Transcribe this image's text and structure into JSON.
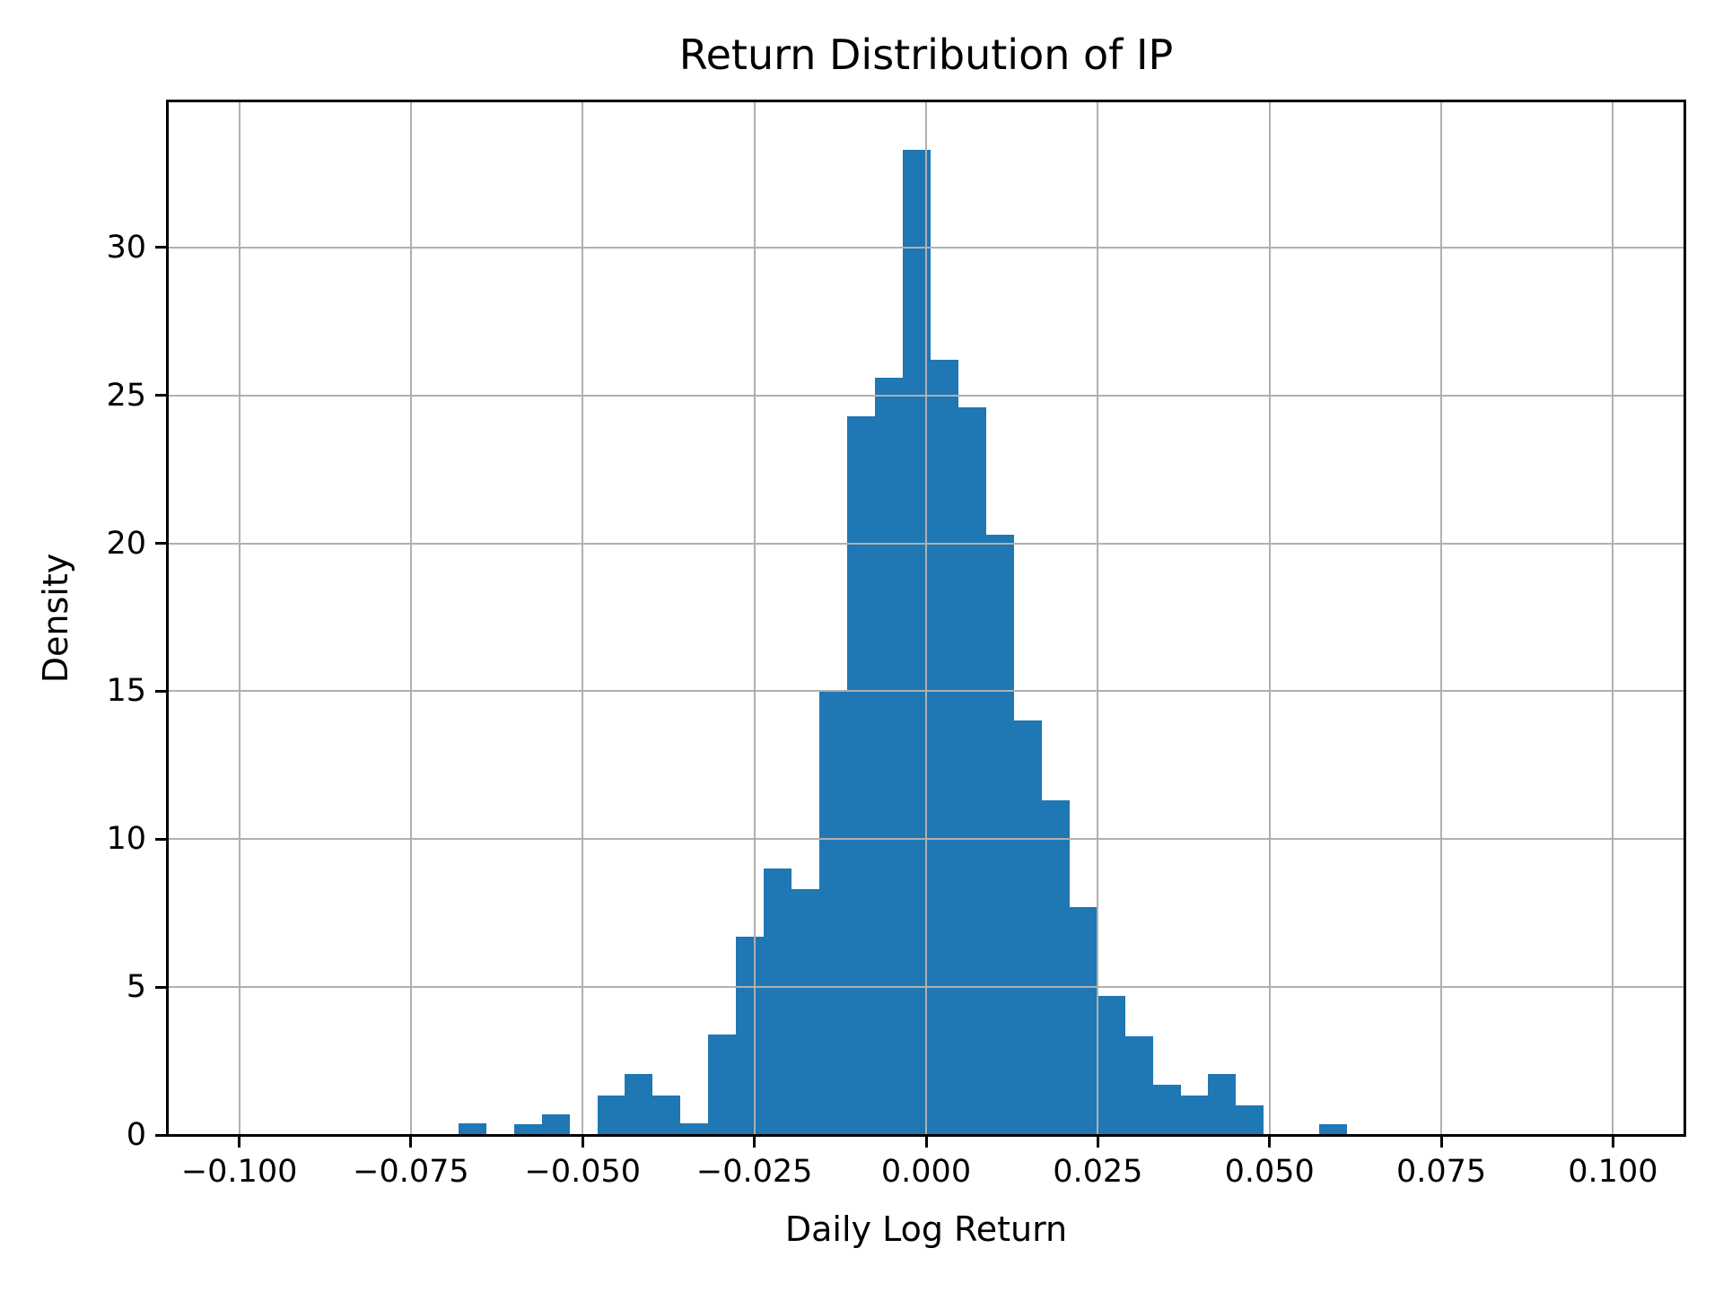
{
  "figure": {
    "title": "Return Distribution of IP",
    "xlabel": "Daily Log Return",
    "ylabel": "Density"
  },
  "axes": {
    "xlim": [
      -0.1104,
      0.1104
    ],
    "ylim": [
      0,
      34.94
    ],
    "grid": true,
    "grid_color": "#b0b0b0",
    "x_ticks": [
      {
        "value": -0.1,
        "label": "−0.100"
      },
      {
        "value": -0.075,
        "label": "−0.075"
      },
      {
        "value": -0.05,
        "label": "−0.050"
      },
      {
        "value": -0.025,
        "label": "−0.025"
      },
      {
        "value": 0.0,
        "label": "0.000"
      },
      {
        "value": 0.025,
        "label": "0.025"
      },
      {
        "value": 0.05,
        "label": "0.050"
      },
      {
        "value": 0.075,
        "label": "0.075"
      },
      {
        "value": 0.1,
        "label": "0.100"
      }
    ],
    "y_ticks": [
      {
        "value": 0,
        "label": "0"
      },
      {
        "value": 5,
        "label": "5"
      },
      {
        "value": 10,
        "label": "10"
      },
      {
        "value": 15,
        "label": "15"
      },
      {
        "value": 20,
        "label": "20"
      },
      {
        "value": 25,
        "label": "25"
      },
      {
        "value": 30,
        "label": "30"
      }
    ]
  },
  "chart_data": {
    "type": "bar",
    "subtype": "histogram",
    "title": "Return Distribution of IP",
    "xlabel": "Daily Log Return",
    "ylabel": "Density",
    "stat": "density",
    "bar_color": "#1f77b4",
    "grid_color": "#b0b0b0",
    "xlim": [
      -0.1104,
      0.1104
    ],
    "ylim": [
      0,
      34.94
    ],
    "bin_start": -0.0681,
    "bin_width": 0.004044,
    "bin_count": 32,
    "densities": [
      0.4,
      0,
      0.35,
      0.7,
      0,
      1.35,
      2.05,
      1.35,
      0.4,
      3.4,
      6.7,
      9.0,
      8.3,
      15.0,
      24.3,
      25.6,
      33.3,
      26.2,
      24.6,
      20.3,
      14.0,
      11.3,
      7.7,
      4.7,
      3.35,
      1.7,
      1.35,
      2.05,
      1.0,
      0,
      0,
      0.35
    ],
    "legend": null
  }
}
